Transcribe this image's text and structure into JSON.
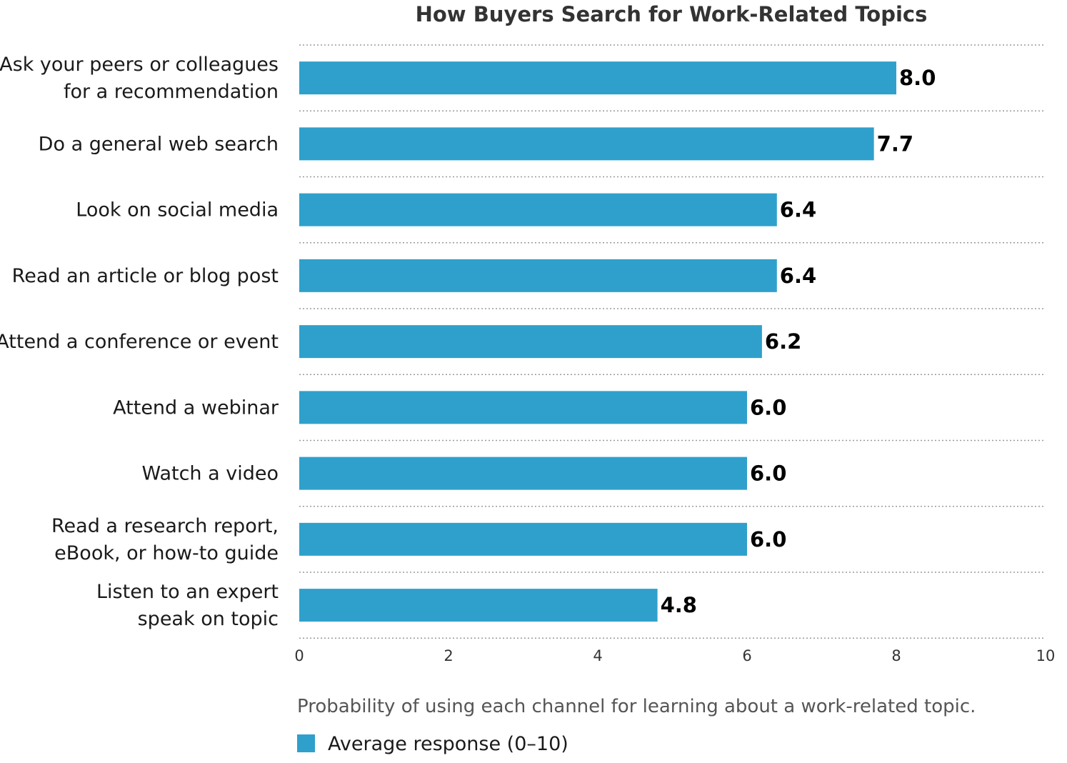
{
  "chart_data": {
    "type": "bar",
    "orientation": "horizontal",
    "title": "How Buyers Search for Work-Related Topics",
    "categories": [
      [
        "Ask your peers or colleagues",
        "for a recommendation"
      ],
      [
        "Do a general web search"
      ],
      [
        "Look on social media"
      ],
      [
        "Read an article or blog post"
      ],
      [
        "Attend a conference or event"
      ],
      [
        "Attend a webinar"
      ],
      [
        "Watch a video"
      ],
      [
        "Read a research report,",
        "eBook, or how-to guide"
      ],
      [
        "Listen to an expert",
        "speak on topic"
      ]
    ],
    "series": [
      {
        "name": "Average response (0–10)",
        "values": [
          8.0,
          7.7,
          6.4,
          6.4,
          6.2,
          6.0,
          6.0,
          6.0,
          4.8
        ],
        "value_labels": [
          "8.0",
          "7.7",
          "6.4",
          "6.4",
          "6.2",
          "6.0",
          "6.0",
          "6.0",
          "4.8"
        ],
        "color": "#2fa0cc"
      }
    ],
    "xlim": [
      0,
      10
    ],
    "x_ticks": [
      "0",
      "2",
      "4",
      "6",
      "8",
      "10"
    ],
    "grid": "dotted horizontal separators",
    "caption": "Probability of using each channel for learning about a work-related topic.",
    "legend_position": "bottom-left"
  }
}
